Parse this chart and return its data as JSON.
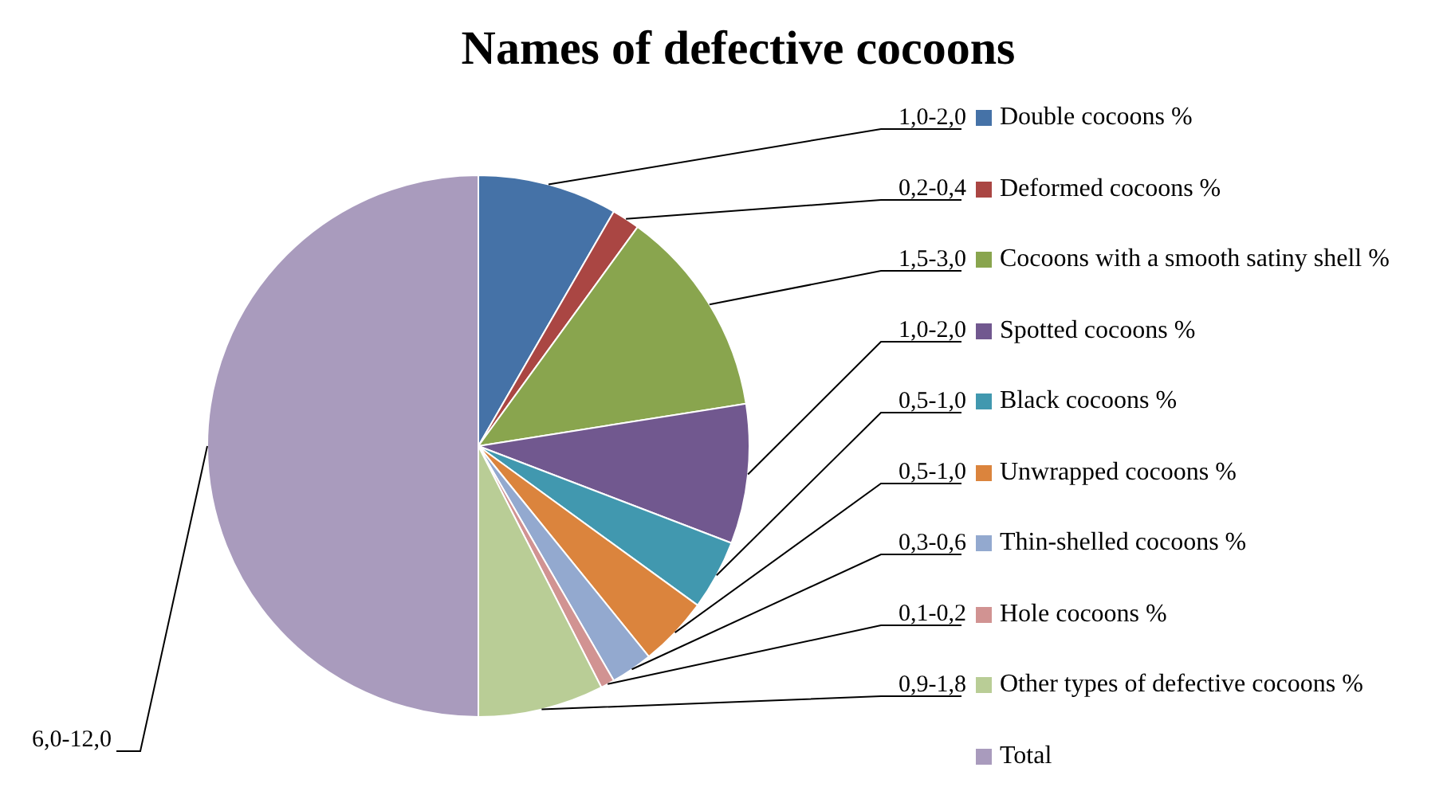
{
  "chart_data": {
    "type": "pie",
    "title": "Names of defective cocoons",
    "categories": [
      "Double cocoons %",
      "Deformed cocoons %",
      "Cocoons with a smooth satiny shell %",
      "Spotted cocoons %",
      "Black cocoons %",
      "Unwrapped cocoons %",
      "Thin-shelled cocoons %",
      "Hole cocoons %",
      "Other types of defective cocoons %",
      "Total"
    ],
    "values": [
      8.33,
      1.67,
      12.5,
      8.33,
      4.17,
      4.17,
      2.5,
      0.83,
      7.5,
      50
    ],
    "value_labels": [
      "1,0-2,0",
      "0,2-0,4",
      "1,5-3,0",
      "1,0-2,0",
      "0,5-1,0",
      "0,5-1,0",
      "0,3-0,6",
      "0,1-0,2",
      "0,9-1,8",
      "6,0-12,0"
    ],
    "colors": [
      "#4572a7",
      "#aa4643",
      "#89a54e",
      "#71588f",
      "#4198af",
      "#db843d",
      "#93a9cf",
      "#d19392",
      "#b9cd96",
      "#a99bbd"
    ],
    "legend": "right"
  }
}
